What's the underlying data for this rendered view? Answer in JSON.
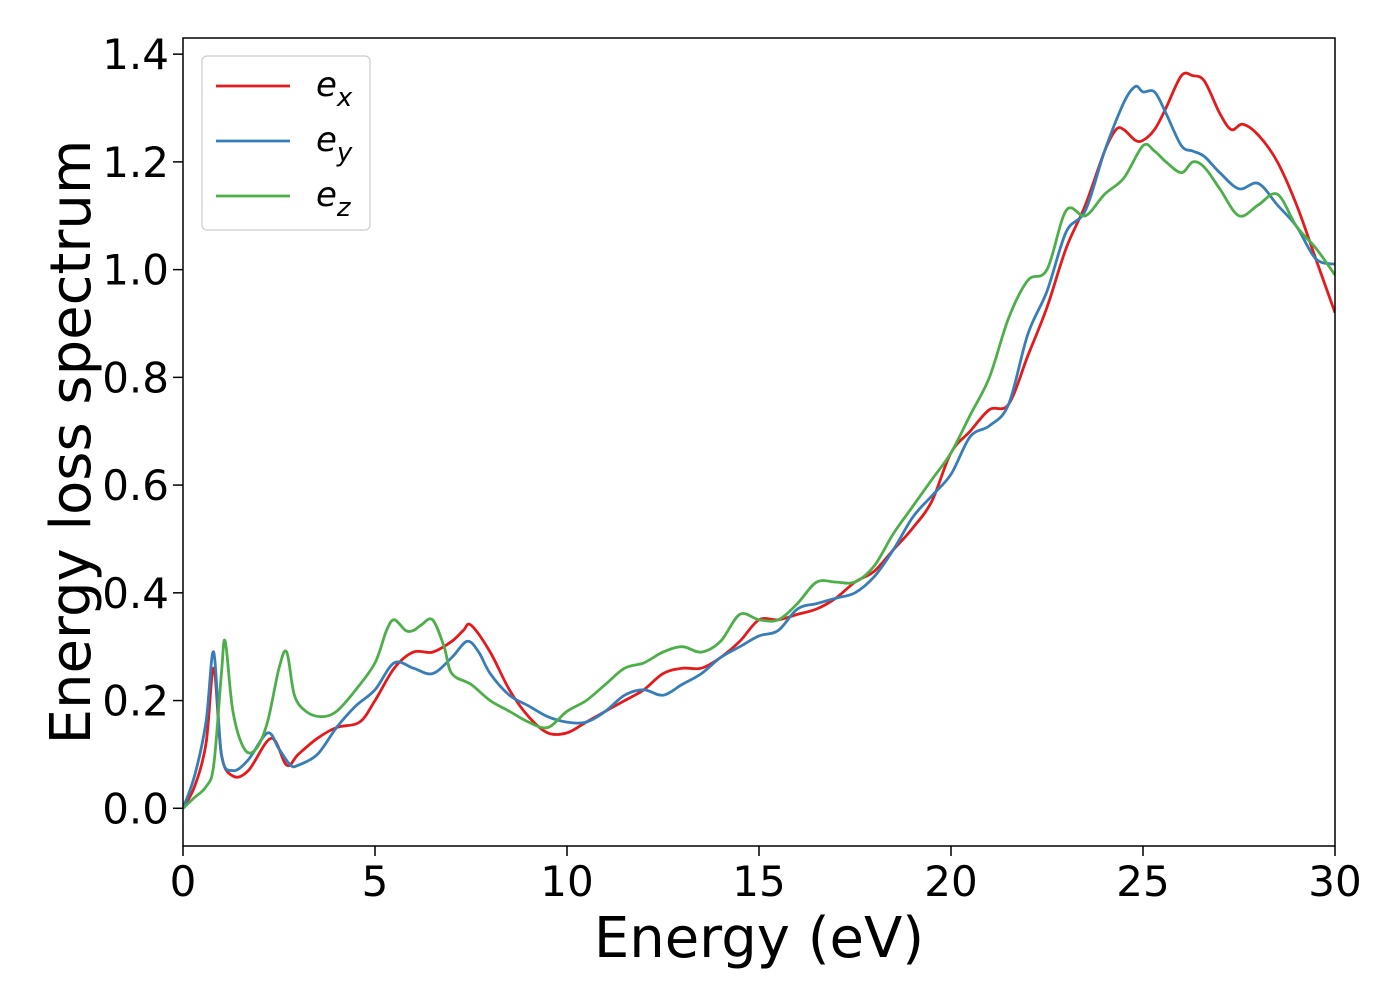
{
  "chart_data": {
    "type": "line",
    "title": "",
    "xlabel": "Energy (eV)",
    "ylabel": "Energy loss spectrum",
    "xlim": [
      0,
      30
    ],
    "ylim": [
      -0.07,
      1.43
    ],
    "xticks": [
      0,
      5,
      10,
      15,
      20,
      25,
      30
    ],
    "xtick_labels": [
      "0",
      "5",
      "10",
      "15",
      "20",
      "25",
      "30"
    ],
    "yticks": [
      0.0,
      0.2,
      0.4,
      0.6,
      0.8,
      1.0,
      1.2,
      1.4
    ],
    "ytick_labels": [
      "0.0",
      "0.2",
      "0.4",
      "0.6",
      "0.8",
      "1.0",
      "1.2",
      "1.4"
    ],
    "grid": false,
    "legend_position": "top-left",
    "series": [
      {
        "name": "e",
        "subscript": "x",
        "color": "#e41a1c",
        "x": [
          0,
          0.3,
          0.6,
          0.8,
          1.0,
          1.3,
          1.7,
          2.3,
          2.7,
          3.0,
          3.5,
          4.0,
          4.6,
          5.0,
          5.5,
          6.0,
          6.5,
          7.0,
          7.3,
          7.5,
          8.0,
          8.5,
          9.0,
          9.5,
          10.0,
          10.5,
          11.0,
          11.5,
          12.0,
          12.5,
          13.0,
          13.5,
          14.0,
          14.5,
          15.0,
          15.5,
          16.0,
          16.5,
          17.0,
          17.5,
          18.0,
          18.5,
          19.0,
          19.5,
          20.0,
          20.5,
          21.0,
          21.5,
          22.0,
          22.5,
          23.0,
          23.5,
          24.0,
          24.3,
          24.5,
          24.8,
          25.0,
          25.3,
          25.6,
          26.0,
          26.3,
          26.6,
          27.0,
          27.3,
          27.6,
          28.0,
          28.5,
          29.0,
          29.5,
          30.0
        ],
        "y": [
          0.0,
          0.04,
          0.12,
          0.26,
          0.1,
          0.06,
          0.07,
          0.13,
          0.08,
          0.1,
          0.13,
          0.15,
          0.16,
          0.2,
          0.26,
          0.29,
          0.29,
          0.31,
          0.33,
          0.34,
          0.29,
          0.22,
          0.17,
          0.14,
          0.14,
          0.16,
          0.18,
          0.2,
          0.22,
          0.25,
          0.26,
          0.26,
          0.28,
          0.31,
          0.35,
          0.35,
          0.36,
          0.37,
          0.39,
          0.42,
          0.44,
          0.48,
          0.52,
          0.57,
          0.66,
          0.7,
          0.74,
          0.75,
          0.84,
          0.93,
          1.04,
          1.12,
          1.22,
          1.26,
          1.26,
          1.24,
          1.24,
          1.26,
          1.3,
          1.36,
          1.36,
          1.35,
          1.29,
          1.26,
          1.27,
          1.25,
          1.2,
          1.12,
          1.02,
          0.92
        ]
      },
      {
        "name": "e",
        "subscript": "y",
        "color": "#377eb8",
        "x": [
          0,
          0.3,
          0.6,
          0.8,
          1.0,
          1.3,
          1.7,
          2.2,
          2.5,
          2.8,
          3.0,
          3.5,
          4.0,
          4.5,
          5.0,
          5.5,
          6.0,
          6.5,
          7.0,
          7.4,
          7.7,
          8.0,
          8.5,
          9.0,
          9.5,
          10.0,
          10.5,
          11.0,
          11.5,
          12.0,
          12.5,
          13.0,
          13.5,
          14.0,
          14.5,
          15.0,
          15.5,
          16.0,
          16.5,
          17.0,
          17.5,
          18.0,
          18.5,
          19.0,
          19.5,
          20.0,
          20.5,
          21.0,
          21.5,
          22.0,
          22.5,
          23.0,
          23.5,
          24.0,
          24.5,
          24.8,
          25.0,
          25.3,
          25.6,
          26.0,
          26.3,
          26.6,
          27.0,
          27.5,
          28.0,
          28.5,
          29.0,
          29.5,
          30.0
        ],
        "y": [
          0.0,
          0.06,
          0.16,
          0.29,
          0.1,
          0.07,
          0.09,
          0.14,
          0.11,
          0.08,
          0.08,
          0.1,
          0.15,
          0.19,
          0.22,
          0.27,
          0.26,
          0.25,
          0.28,
          0.31,
          0.29,
          0.25,
          0.21,
          0.19,
          0.17,
          0.16,
          0.16,
          0.18,
          0.21,
          0.22,
          0.21,
          0.23,
          0.25,
          0.28,
          0.3,
          0.32,
          0.33,
          0.37,
          0.38,
          0.39,
          0.4,
          0.43,
          0.48,
          0.54,
          0.58,
          0.62,
          0.69,
          0.71,
          0.75,
          0.88,
          0.96,
          1.07,
          1.11,
          1.22,
          1.31,
          1.34,
          1.33,
          1.33,
          1.29,
          1.23,
          1.22,
          1.21,
          1.18,
          1.15,
          1.16,
          1.12,
          1.08,
          1.02,
          1.01
        ]
      },
      {
        "name": "e",
        "subscript": "z",
        "color": "#4daf4a",
        "x": [
          0,
          0.3,
          0.6,
          0.8,
          1.0,
          1.1,
          1.3,
          1.6,
          1.9,
          2.2,
          2.5,
          2.7,
          2.9,
          3.2,
          3.6,
          4.0,
          4.5,
          5.0,
          5.3,
          5.5,
          5.8,
          6.0,
          6.2,
          6.5,
          6.8,
          7.0,
          7.5,
          8.0,
          8.5,
          9.0,
          9.5,
          10.0,
          10.5,
          11.0,
          11.5,
          12.0,
          12.5,
          13.0,
          13.5,
          14.0,
          14.5,
          15.0,
          15.5,
          16.0,
          16.5,
          17.0,
          17.5,
          18.0,
          18.5,
          19.0,
          19.5,
          20.0,
          20.5,
          21.0,
          21.5,
          22.0,
          22.5,
          23.0,
          23.5,
          24.0,
          24.5,
          25.0,
          25.3,
          25.6,
          26.0,
          26.3,
          26.6,
          27.0,
          27.5,
          28.0,
          28.5,
          29.0,
          29.5,
          30.0
        ],
        "y": [
          0.0,
          0.02,
          0.04,
          0.08,
          0.25,
          0.31,
          0.18,
          0.11,
          0.11,
          0.16,
          0.26,
          0.29,
          0.21,
          0.18,
          0.17,
          0.18,
          0.22,
          0.27,
          0.33,
          0.35,
          0.33,
          0.33,
          0.34,
          0.35,
          0.3,
          0.25,
          0.23,
          0.2,
          0.18,
          0.16,
          0.15,
          0.18,
          0.2,
          0.23,
          0.26,
          0.27,
          0.29,
          0.3,
          0.29,
          0.31,
          0.36,
          0.35,
          0.35,
          0.38,
          0.42,
          0.42,
          0.42,
          0.45,
          0.51,
          0.56,
          0.61,
          0.66,
          0.73,
          0.8,
          0.91,
          0.98,
          1.0,
          1.11,
          1.1,
          1.14,
          1.17,
          1.23,
          1.22,
          1.2,
          1.18,
          1.2,
          1.19,
          1.15,
          1.1,
          1.12,
          1.14,
          1.08,
          1.04,
          0.99
        ]
      }
    ]
  }
}
